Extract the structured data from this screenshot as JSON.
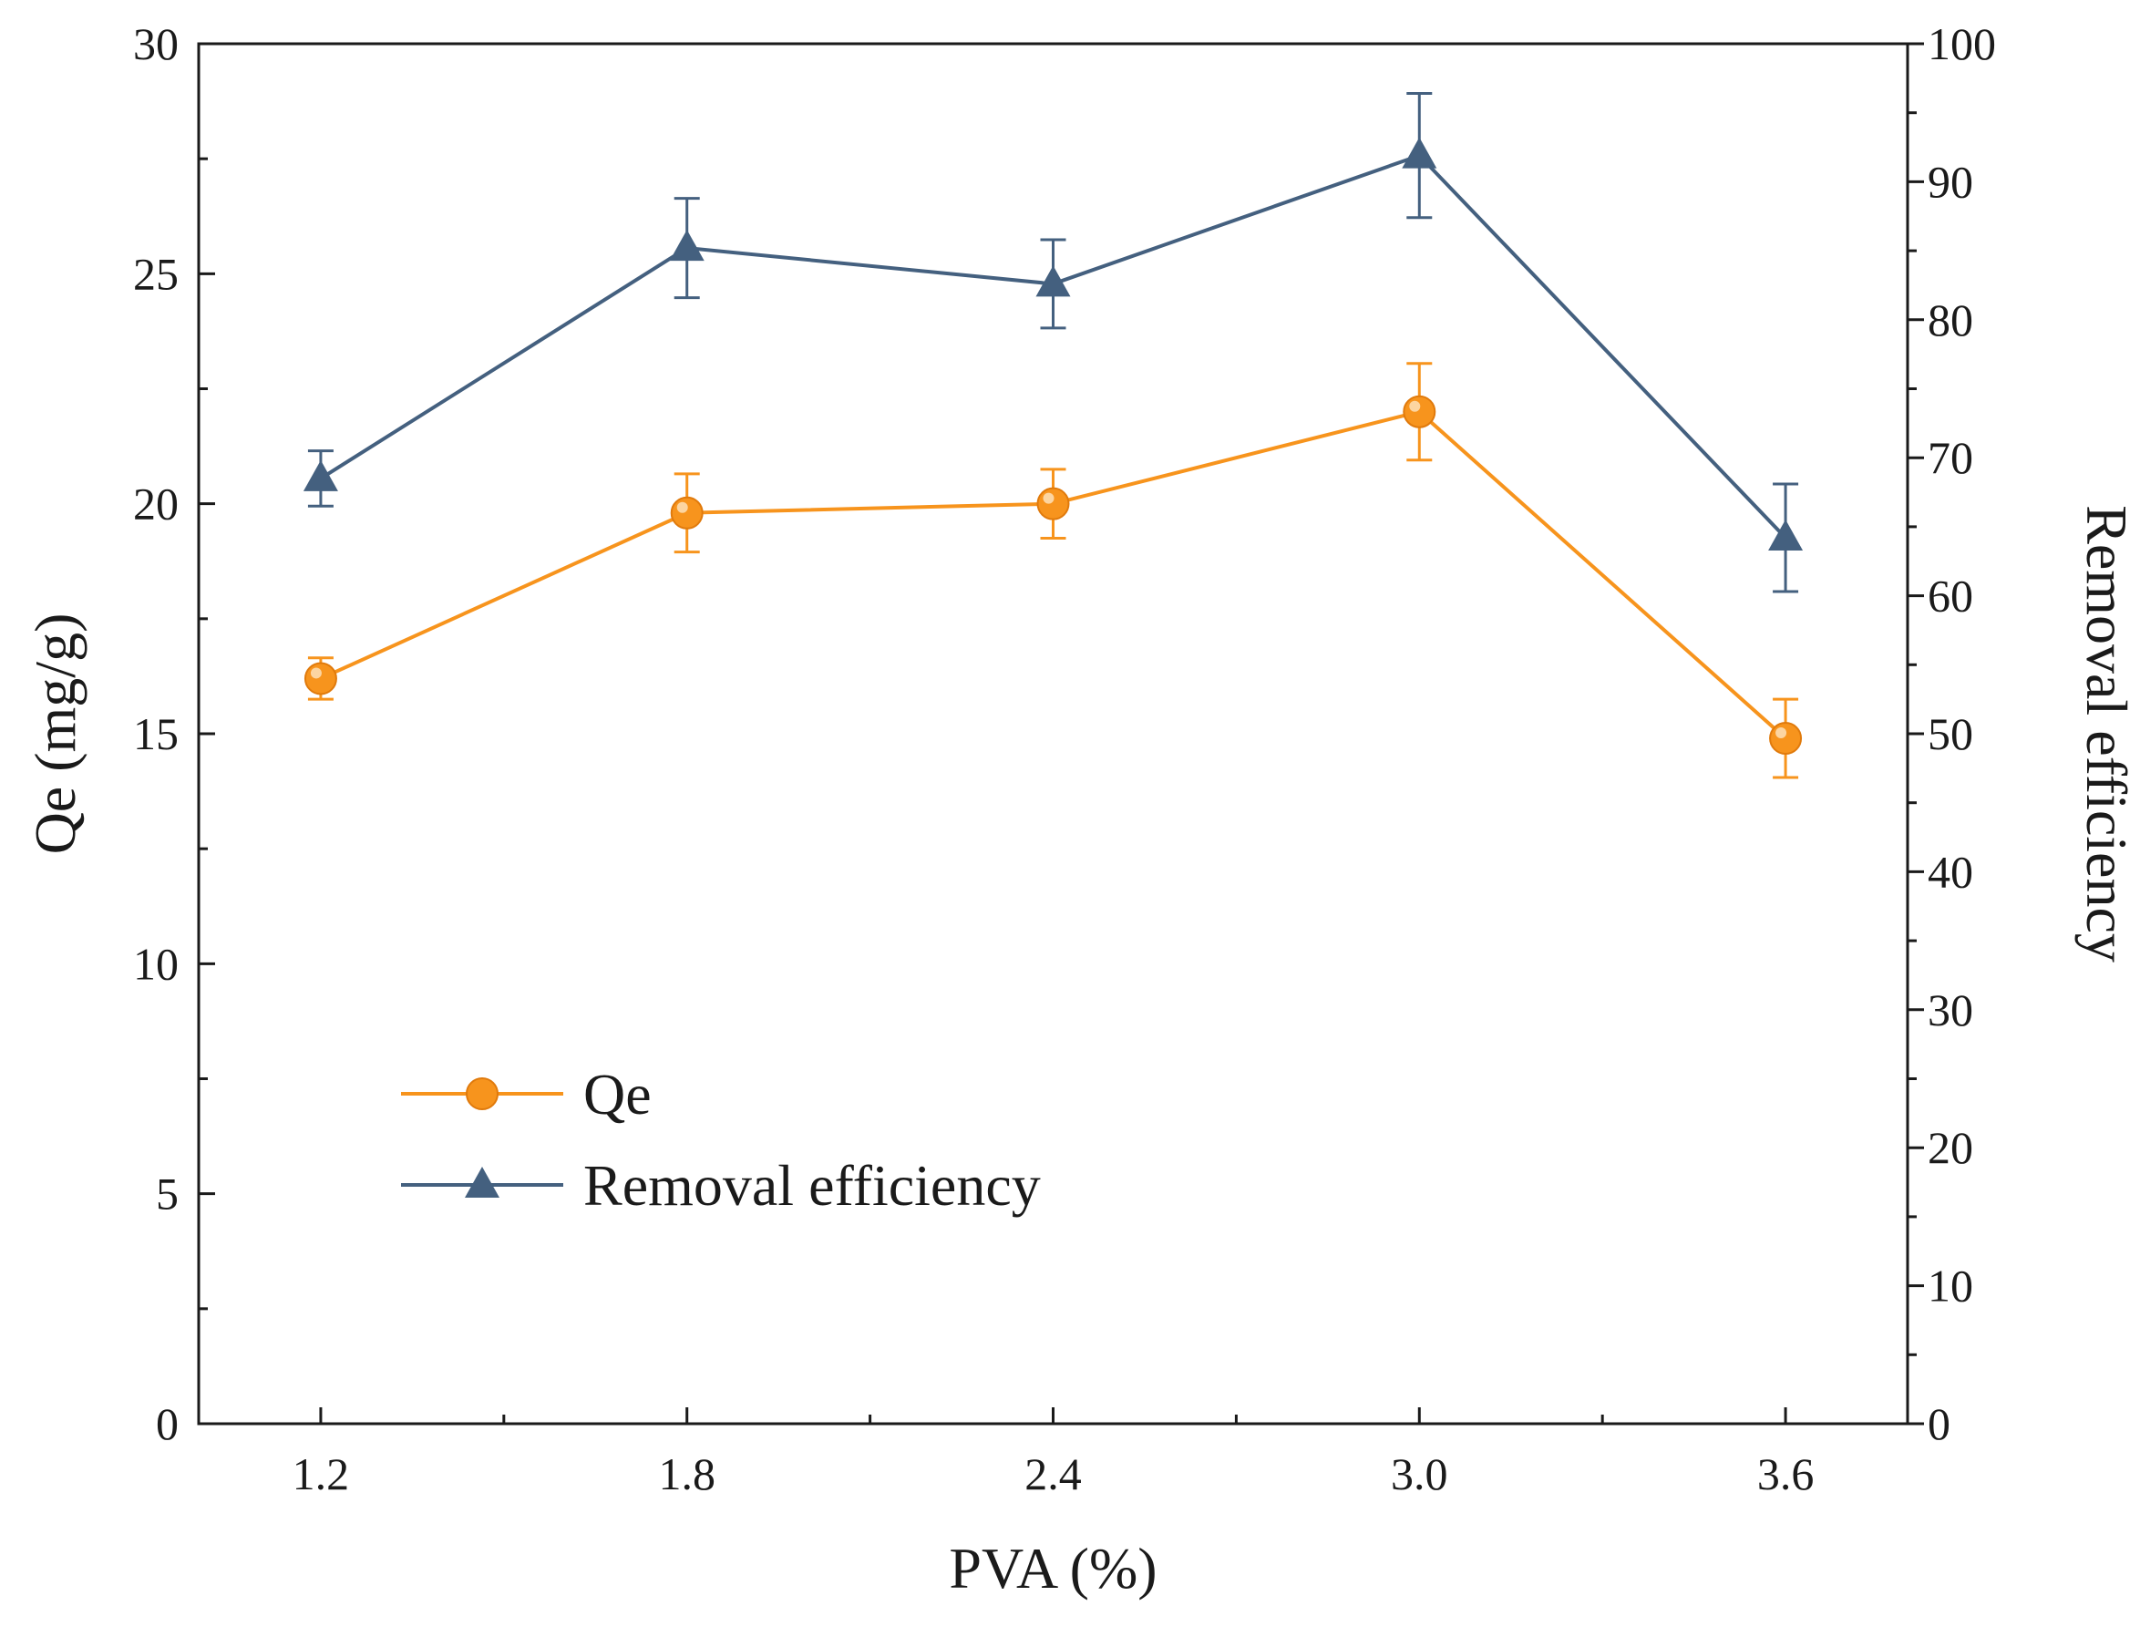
{
  "chart_data": {
    "type": "line",
    "x": [
      1.2,
      1.8,
      2.4,
      3.0,
      3.6
    ],
    "x_tick_labels": [
      "1.2",
      "1.8",
      "2.4",
      "3.0",
      "3.6"
    ],
    "xlabel": "PVA (%)",
    "xlim": [
      1.0,
      3.8
    ],
    "ylabel_left": "Qe (mg/g)",
    "ylim_left": [
      0,
      30
    ],
    "yticks_left": [
      "0",
      "5",
      "10",
      "15",
      "20",
      "25",
      "30"
    ],
    "ylabel_right": "Removal efficiency",
    "ylim_right": [
      0,
      100
    ],
    "yticks_right": [
      "0",
      "10",
      "20",
      "30",
      "40",
      "50",
      "60",
      "70",
      "80",
      "90",
      "100"
    ],
    "grid": false,
    "legend_position": "lower-left",
    "series": [
      {
        "name": "Qe",
        "axis": "left",
        "marker": "circle",
        "color": "#f7941d",
        "values": [
          16.2,
          19.8,
          20.0,
          22.0,
          14.9
        ],
        "errors": [
          0.45,
          0.85,
          0.75,
          1.05,
          0.85
        ]
      },
      {
        "name": "Removal efficiency",
        "axis": "right",
        "marker": "triangle",
        "color": "#44607f",
        "values": [
          68.5,
          85.2,
          82.6,
          91.9,
          64.2
        ],
        "errors": [
          2.0,
          3.6,
          3.2,
          4.5,
          3.9
        ]
      }
    ]
  }
}
